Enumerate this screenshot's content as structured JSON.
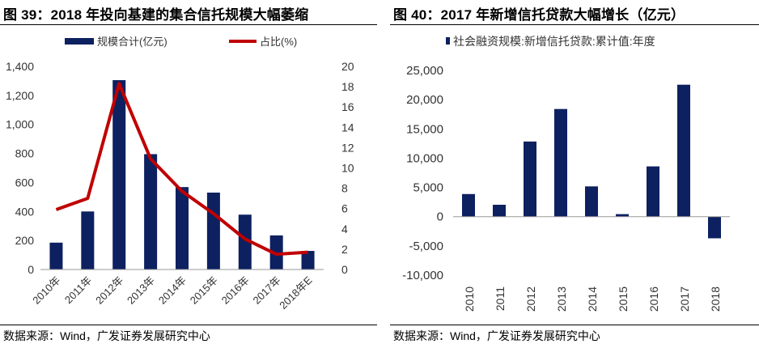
{
  "chart_data": [
    {
      "type": "bar",
      "title": "图 39：2018 年投向基建的集合信托规模大幅萎缩",
      "categories": [
        "2010年",
        "2011年",
        "2012年",
        "2013年",
        "2014年",
        "2015年",
        "2016年",
        "2017年",
        "2018年E"
      ],
      "series": [
        {
          "name": "规模合计(亿元)",
          "type": "bar",
          "axis": "left",
          "values": [
            185,
            400,
            1305,
            795,
            568,
            530,
            378,
            235,
            128
          ],
          "color": "#0d2060"
        },
        {
          "name": "占比(%)",
          "type": "line",
          "axis": "right",
          "values": [
            5.9,
            7.0,
            18.3,
            10.9,
            7.7,
            5.5,
            3.0,
            1.5,
            1.7
          ],
          "color": "#c00000"
        }
      ],
      "ylim_left": [
        0,
        1400
      ],
      "yticks_left": [
        "0",
        "200",
        "400",
        "600",
        "800",
        "1,000",
        "1,200",
        "1,400"
      ],
      "ylim_right": [
        0,
        20
      ],
      "yticks_right": [
        "0",
        "2",
        "4",
        "6",
        "8",
        "10",
        "12",
        "14",
        "16",
        "18",
        "20"
      ],
      "legend": "top",
      "grid": false,
      "source": "数据来源：Wind，广发证券发展研究中心"
    },
    {
      "type": "bar",
      "title": "图 40：2017 年新增信托贷款大幅增长（亿元）",
      "categories": [
        "2010",
        "2011",
        "2012",
        "2013",
        "2014",
        "2015",
        "2016",
        "2017",
        "2018"
      ],
      "series": [
        {
          "name": "社会融资规模:新增信托贷款:累计值:年度",
          "values": [
            3865,
            2034,
            12845,
            18404,
            5174,
            434,
            8593,
            22555,
            -3700
          ],
          "color": "#0d2060"
        }
      ],
      "ylim": [
        -10000,
        25000
      ],
      "yticks": [
        "-10,000",
        "-5,000",
        "0",
        "5,000",
        "10,000",
        "15,000",
        "20,000",
        "25,000"
      ],
      "legend": "top-left",
      "grid": false,
      "source": "数据来源：Wind，广发证券发展研究中心"
    }
  ]
}
